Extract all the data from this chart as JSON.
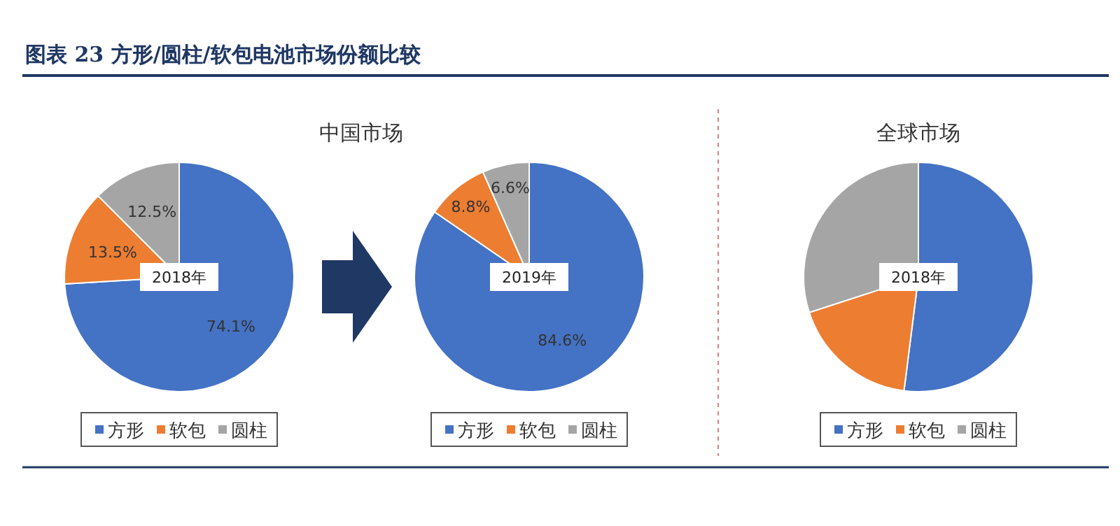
{
  "chart_data": [
    {
      "type": "pie",
      "title": "图表 23   方形/圆柱/软包电池市场份额比较",
      "subtitle": "中国市场",
      "categories": [
        "方形",
        "软包",
        "圆柱"
      ],
      "values": [
        74.1,
        13.5,
        12.5
      ],
      "colors": [
        "#4472c4",
        "#ed7d31",
        "#a5a5a5"
      ],
      "value_labels": [
        "74.1%",
        "13.5%",
        "12.5%"
      ],
      "annotations": [
        "2018年"
      ],
      "legend": "bottom"
    },
    {
      "type": "pie",
      "categories": [
        "方形",
        "软包",
        "圆柱"
      ],
      "values": [
        84.6,
        8.8,
        6.6
      ],
      "colors": [
        "#4472c4",
        "#ed7d31",
        "#a5a5a5"
      ],
      "value_labels": [
        "84.6%",
        "8.8%",
        "6.6%"
      ],
      "annotations": [
        "2019年"
      ],
      "legend": "bottom"
    },
    {
      "type": "pie",
      "subtitle": "全球市场",
      "categories": [
        "方形",
        "软包",
        "圆柱"
      ],
      "values": [
        52,
        18,
        30
      ],
      "colors": [
        "#4472c4",
        "#ed7d31",
        "#a5a5a5"
      ],
      "annotations": [
        "2018年"
      ],
      "legend": "bottom"
    }
  ]
}
